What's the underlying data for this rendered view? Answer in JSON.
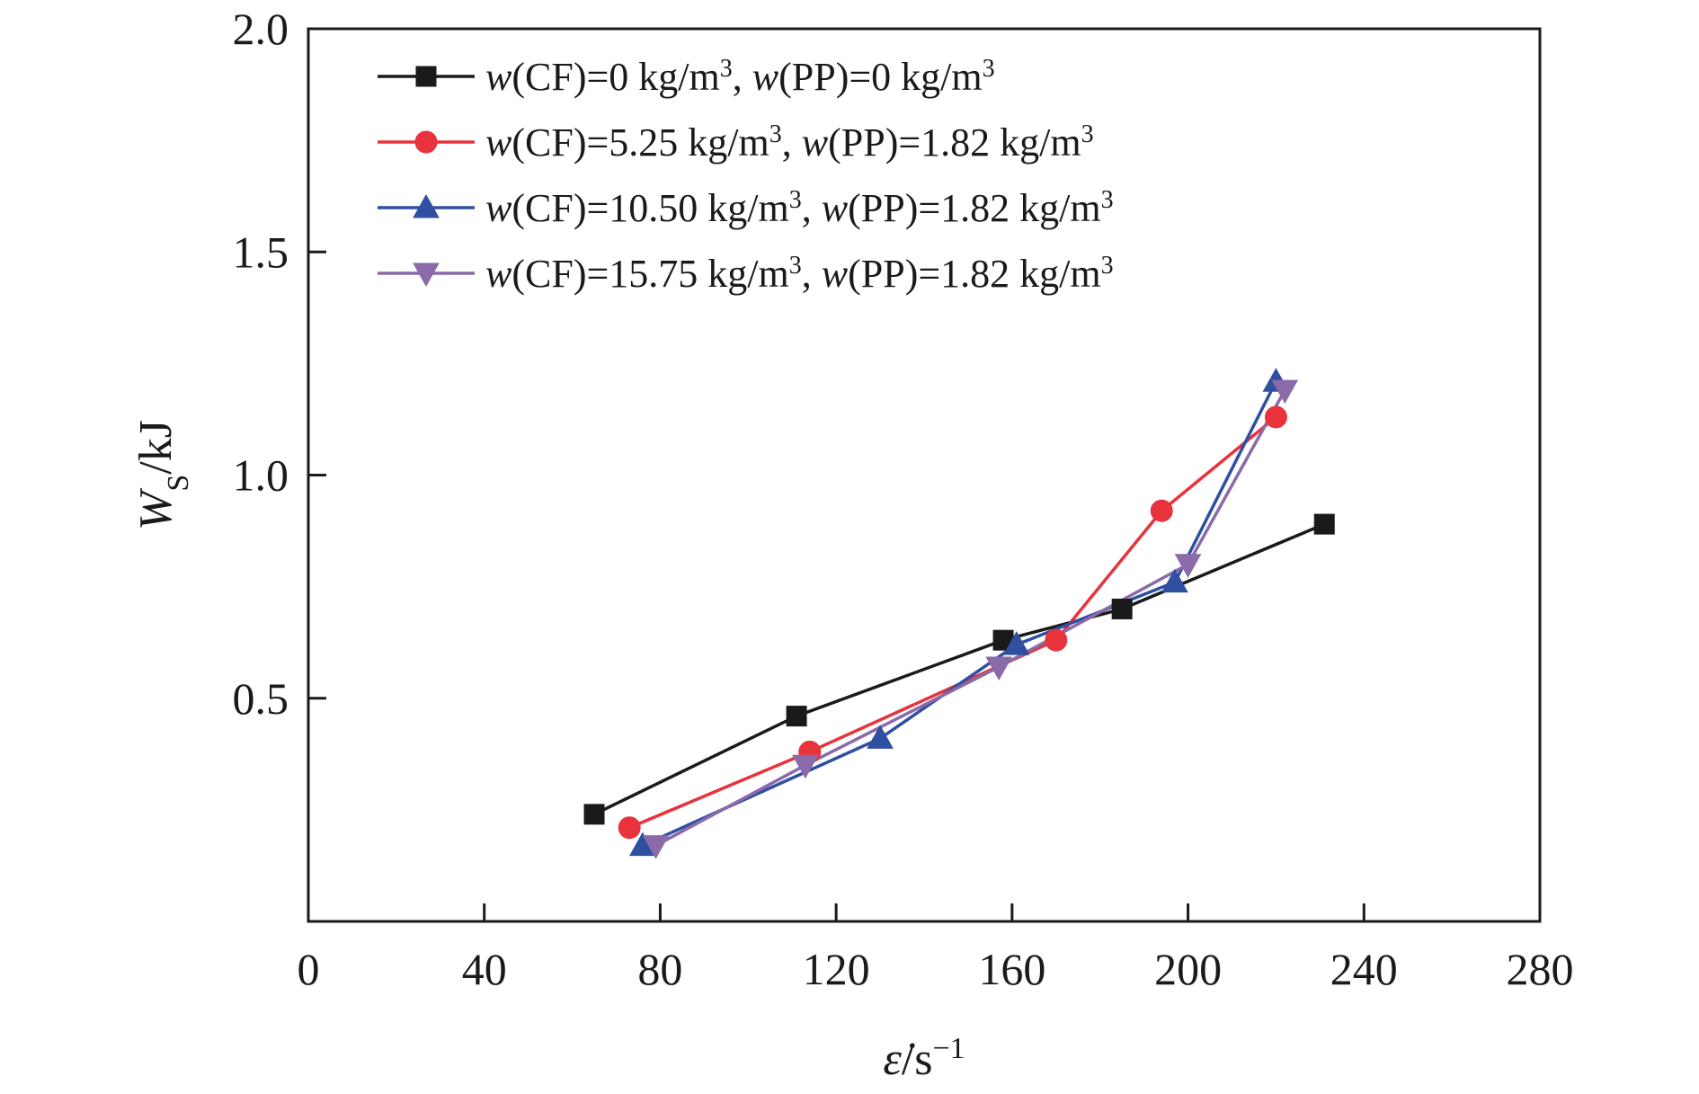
{
  "chart_data": {
    "type": "line",
    "title": "",
    "xlabel": {
      "var": "ε̇",
      "sep": "/",
      "unit": "s",
      "exp": "−1"
    },
    "ylabel": {
      "var": "W",
      "sub": "S",
      "sep": "/",
      "unit": "kJ"
    },
    "xlim": [
      0,
      280
    ],
    "ylim": [
      0,
      2.0
    ],
    "xticks": [
      0,
      40,
      80,
      120,
      160,
      200,
      240,
      280
    ],
    "xtick_labels": [
      "0",
      "40",
      "80",
      "120",
      "160",
      "200",
      "240",
      "280"
    ],
    "yticks": [
      0.5,
      1.0,
      1.5,
      2.0
    ],
    "ytick_labels": [
      "0.5",
      "1.0",
      "1.5",
      "2.0"
    ],
    "grid": false,
    "legend_position": "top-left",
    "series": [
      {
        "name": "w(CF)=0 kg/m3, w(PP)=0 kg/m3",
        "legend_parts": [
          {
            "t": "w",
            "i": true
          },
          {
            "t": "(CF)=0 kg/m"
          },
          {
            "t": "3",
            "sup": true
          },
          {
            "t": ", "
          },
          {
            "t": "w",
            "i": true
          },
          {
            "t": "(PP)=0 kg/m"
          },
          {
            "t": "3",
            "sup": true
          }
        ],
        "color": "#1a1a1a",
        "marker": "square",
        "x": [
          65,
          111,
          158,
          185,
          231
        ],
        "y": [
          0.24,
          0.46,
          0.63,
          0.7,
          0.89
        ]
      },
      {
        "name": "w(CF)=5.25 kg/m3, w(PP)=1.82 kg/m3",
        "legend_parts": [
          {
            "t": "w",
            "i": true
          },
          {
            "t": "(CF)=5.25 kg/m"
          },
          {
            "t": "3",
            "sup": true
          },
          {
            "t": ", "
          },
          {
            "t": "w",
            "i": true
          },
          {
            "t": "(PP)=1.82 kg/m"
          },
          {
            "t": "3",
            "sup": true
          }
        ],
        "color": "#e8323c",
        "marker": "circle",
        "x": [
          73,
          114,
          170,
          194,
          220
        ],
        "y": [
          0.21,
          0.38,
          0.63,
          0.92,
          1.13
        ]
      },
      {
        "name": "w(CF)=10.50 kg/m3, w(PP)=1.82 kg/m3",
        "legend_parts": [
          {
            "t": "w",
            "i": true
          },
          {
            "t": "(CF)=10.50 kg/m"
          },
          {
            "t": "3",
            "sup": true
          },
          {
            "t": ", "
          },
          {
            "t": "w",
            "i": true
          },
          {
            "t": "(PP)=1.82 kg/m"
          },
          {
            "t": "3",
            "sup": true
          }
        ],
        "color": "#2f4fa0",
        "marker": "triangle-up",
        "x": [
          76,
          130,
          161,
          197,
          220
        ],
        "y": [
          0.17,
          0.41,
          0.62,
          0.76,
          1.21
        ]
      },
      {
        "name": "w(CF)=15.75 kg/m3, w(PP)=1.82 kg/m3",
        "legend_parts": [
          {
            "t": "w",
            "i": true
          },
          {
            "t": "(CF)=15.75 kg/m"
          },
          {
            "t": "3",
            "sup": true
          },
          {
            "t": ", "
          },
          {
            "t": "w",
            "i": true
          },
          {
            "t": "(PP)=1.82 kg/m"
          },
          {
            "t": "3",
            "sup": true
          }
        ],
        "color": "#8a6aa8",
        "marker": "triangle-down",
        "x": [
          79,
          113,
          157,
          200,
          222
        ],
        "y": [
          0.17,
          0.35,
          0.57,
          0.8,
          1.19
        ]
      }
    ]
  }
}
